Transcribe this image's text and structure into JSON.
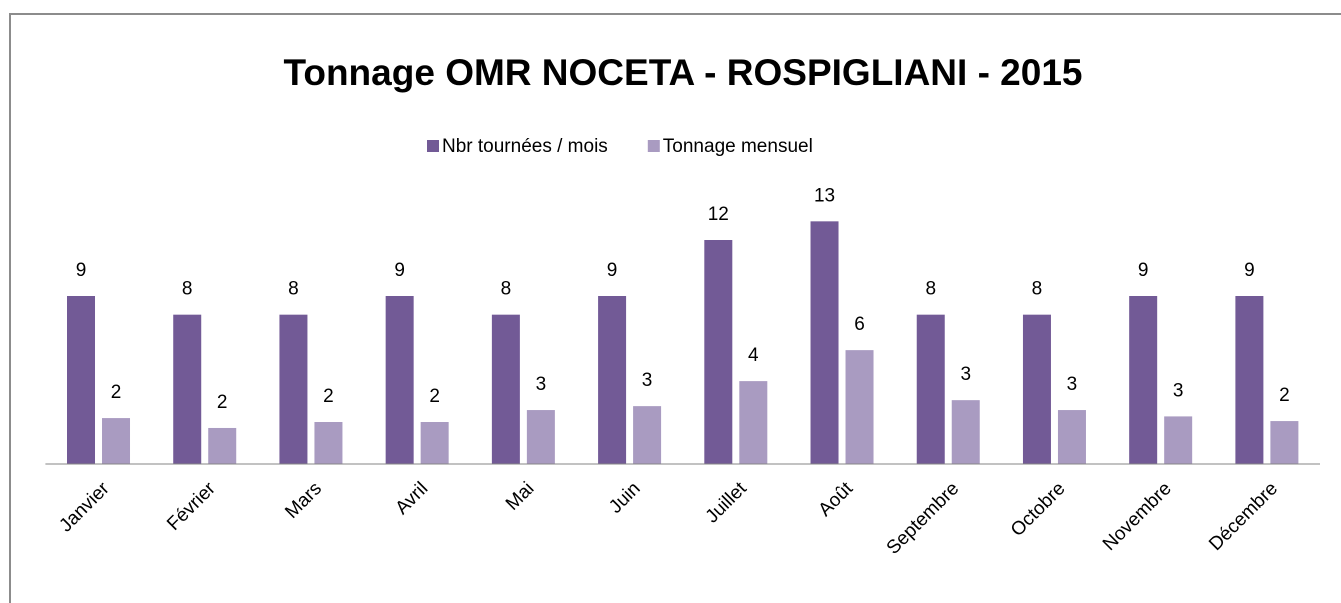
{
  "chart_data": {
    "type": "bar",
    "title": "Tonnage OMR NOCETA - ROSPIGLIANI - 2015",
    "categories": [
      "Janvier",
      "Février",
      "Mars",
      "Avril",
      "Mai",
      "Juin",
      "Juillet",
      "Août",
      "Septembre",
      "Octobre",
      "Novembre",
      "Décembre"
    ],
    "series": [
      {
        "name": "Nbr tournées / mois",
        "color": "#725a96",
        "values": [
          9,
          8,
          8,
          9,
          8,
          9,
          12,
          13,
          8,
          8,
          9,
          9
        ]
      },
      {
        "name": "Tonnage mensuel",
        "color": "#a99bc1",
        "values": [
          2.46,
          1.93,
          2.25,
          2.25,
          2.89,
          3.1,
          4.44,
          6.1,
          3.42,
          2.89,
          2.55,
          2.3
        ],
        "value_labels": [
          "2",
          "2",
          "2",
          "2",
          "3",
          "3",
          "4",
          "6",
          "3",
          "3",
          "3",
          "2"
        ]
      }
    ],
    "ylim": [
      0,
      15
    ],
    "legend": "top"
  }
}
